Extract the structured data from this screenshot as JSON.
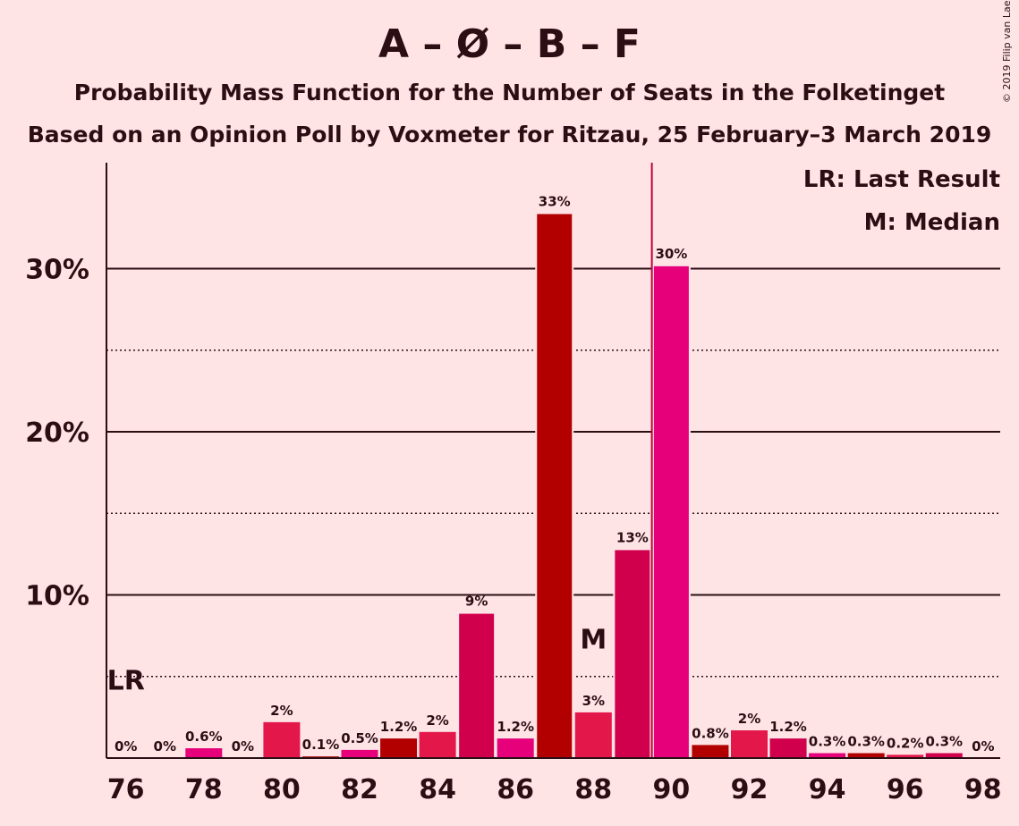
{
  "header": {
    "title": "A – Ø – B – F",
    "subtitle1": "Probability Mass Function for the Number of Seats in the Folketinget",
    "subtitle2": "Based on an Opinion Poll by Voxmeter for Ritzau, 25 February–3 March 2019",
    "copyright": "© 2019 Filip van Laenen"
  },
  "legend": {
    "last_result": "LR: Last Result",
    "median": "M: Median"
  },
  "markers": {
    "last_result_label": "LR",
    "last_result_seat": 76,
    "median_label": "M",
    "median_seat": 88,
    "majority_line_seat": 89.5
  },
  "colors": {
    "background": "#FFE4E6",
    "A": "#E4174B",
    "O": "#B20000",
    "B": "#D0004D",
    "F": "#E6007A",
    "majority_line": "#C0003A",
    "text": "#2a0e14"
  },
  "chart_data": {
    "type": "bar",
    "title": "A – Ø – B – F",
    "xlabel": "",
    "ylabel": "",
    "xlim": [
      76,
      98
    ],
    "ylim": [
      0,
      36
    ],
    "x_ticks": [
      76,
      78,
      80,
      82,
      84,
      86,
      88,
      90,
      92,
      94,
      96,
      98
    ],
    "y_ticks": [
      {
        "value": 10,
        "label": "10%"
      },
      {
        "value": 20,
        "label": "20%"
      },
      {
        "value": 30,
        "label": "30%"
      }
    ],
    "grid_minor": [
      5,
      15,
      25
    ],
    "legend_position": "top-right",
    "bars": [
      {
        "seats": 76,
        "value": 0,
        "label": "0%",
        "color": "#E4174B"
      },
      {
        "seats": 77,
        "value": 0,
        "label": "0%",
        "color": "#E4174B"
      },
      {
        "seats": 78,
        "value": 0.6,
        "label": "0.6%",
        "color": "#E6007A"
      },
      {
        "seats": 79,
        "value": 0,
        "label": "0%",
        "color": "#E4174B"
      },
      {
        "seats": 80,
        "value": 2.2,
        "label": "2%",
        "color": "#E4174B"
      },
      {
        "seats": 81,
        "value": 0.1,
        "label": "0.1%",
        "color": "#B20000"
      },
      {
        "seats": 82,
        "value": 0.5,
        "label": "0.5%",
        "color": "#E6007A"
      },
      {
        "seats": 83,
        "value": 1.2,
        "label": "1.2%",
        "color": "#B20000"
      },
      {
        "seats": 84,
        "value": 1.6,
        "label": "2%",
        "color": "#E4174B"
      },
      {
        "seats": 85,
        "value": 8.9,
        "label": "9%",
        "color": "#D0004D"
      },
      {
        "seats": 86,
        "value": 1.2,
        "label": "1.2%",
        "color": "#E6007A"
      },
      {
        "seats": 87,
        "value": 33.4,
        "label": "33%",
        "color": "#B20000"
      },
      {
        "seats": 88,
        "value": 2.8,
        "label": "3%",
        "color": "#E4174B"
      },
      {
        "seats": 89,
        "value": 12.8,
        "label": "13%",
        "color": "#D0004D"
      },
      {
        "seats": 90,
        "value": 30.2,
        "label": "30%",
        "color": "#E6007A"
      },
      {
        "seats": 91,
        "value": 0.8,
        "label": "0.8%",
        "color": "#B20000"
      },
      {
        "seats": 92,
        "value": 1.7,
        "label": "2%",
        "color": "#E4174B"
      },
      {
        "seats": 93,
        "value": 1.2,
        "label": "1.2%",
        "color": "#D0004D"
      },
      {
        "seats": 94,
        "value": 0.3,
        "label": "0.3%",
        "color": "#E6007A"
      },
      {
        "seats": 95,
        "value": 0.3,
        "label": "0.3%",
        "color": "#B20000"
      },
      {
        "seats": 96,
        "value": 0.2,
        "label": "0.2%",
        "color": "#E4174B"
      },
      {
        "seats": 97,
        "value": 0.3,
        "label": "0.3%",
        "color": "#D0004D"
      },
      {
        "seats": 98,
        "value": 0,
        "label": "0%",
        "color": "#E6007A"
      }
    ]
  }
}
